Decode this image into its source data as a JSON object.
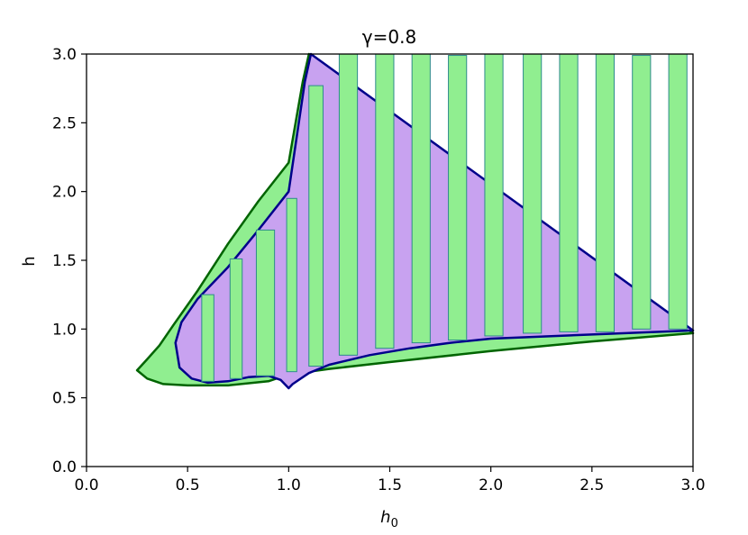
{
  "chart_data": {
    "type": "area",
    "title": "γ=0.8",
    "xlabel": "h",
    "xlabel_sub": "0",
    "ylabel": "h",
    "xlim": [
      0.0,
      3.0
    ],
    "ylim": [
      0.0,
      3.0
    ],
    "x_ticks": [
      "0.0",
      "0.5",
      "1.0",
      "1.5",
      "2.0",
      "2.5",
      "3.0"
    ],
    "y_ticks": [
      "0.0",
      "0.5",
      "1.0",
      "1.5",
      "2.0",
      "2.5",
      "3.0"
    ],
    "grid": false,
    "colors": {
      "green_fill": "#90ee90",
      "green_edge": "#006400",
      "purple_fill": "#c8a2f0",
      "purple_edge": "#00008b",
      "bar_edge": "#2e8b8b"
    },
    "green_region": {
      "upper": [
        [
          0.25,
          0.7
        ],
        [
          0.3,
          0.78
        ],
        [
          0.36,
          0.88
        ],
        [
          0.43,
          1.03
        ],
        [
          0.55,
          1.28
        ],
        [
          0.7,
          1.62
        ],
        [
          0.85,
          1.93
        ],
        [
          1.0,
          2.21
        ],
        [
          1.04,
          2.55
        ],
        [
          1.07,
          2.8
        ],
        [
          1.1,
          3.0
        ]
      ],
      "lower": [
        [
          0.25,
          0.7
        ],
        [
          0.3,
          0.64
        ],
        [
          0.38,
          0.6
        ],
        [
          0.5,
          0.59
        ],
        [
          0.7,
          0.59
        ],
        [
          0.9,
          0.62
        ],
        [
          1.0,
          0.67
        ],
        [
          1.2,
          0.71
        ],
        [
          1.5,
          0.76
        ],
        [
          2.0,
          0.84
        ],
        [
          2.5,
          0.91
        ],
        [
          3.0,
          0.97
        ]
      ]
    },
    "purple_region": {
      "upper": [
        [
          0.44,
          0.9
        ],
        [
          0.47,
          1.05
        ],
        [
          0.55,
          1.22
        ],
        [
          0.7,
          1.45
        ],
        [
          0.85,
          1.72
        ],
        [
          1.0,
          2.0
        ],
        [
          1.04,
          2.4
        ],
        [
          1.08,
          2.8
        ],
        [
          1.11,
          3.0
        ]
      ],
      "lower": [
        [
          0.44,
          0.9
        ],
        [
          0.46,
          0.72
        ],
        [
          0.52,
          0.64
        ],
        [
          0.6,
          0.61
        ],
        [
          0.7,
          0.62
        ],
        [
          0.8,
          0.65
        ],
        [
          0.9,
          0.66
        ],
        [
          0.96,
          0.63
        ],
        [
          1.0,
          0.57
        ],
        [
          1.02,
          0.6
        ],
        [
          1.1,
          0.68
        ],
        [
          1.2,
          0.74
        ],
        [
          1.4,
          0.81
        ],
        [
          1.6,
          0.86
        ],
        [
          1.8,
          0.9
        ],
        [
          2.0,
          0.93
        ],
        [
          2.5,
          0.96
        ],
        [
          3.0,
          0.99
        ]
      ]
    },
    "bars": [
      {
        "x0": 0.57,
        "x1": 0.63,
        "bottom": 0.62,
        "top": 1.25
      },
      {
        "x0": 0.71,
        "x1": 0.77,
        "bottom": 0.64,
        "top": 1.51
      },
      {
        "x0": 0.84,
        "x1": 0.93,
        "bottom": 0.66,
        "top": 1.72
      },
      {
        "x0": 0.99,
        "x1": 1.04,
        "bottom": 0.69,
        "top": 1.95
      },
      {
        "x0": 1.1,
        "x1": 1.17,
        "bottom": 0.73,
        "top": 2.77
      },
      {
        "x0": 1.25,
        "x1": 1.34,
        "bottom": 0.81,
        "top": 3.0
      },
      {
        "x0": 1.43,
        "x1": 1.52,
        "bottom": 0.86,
        "top": 3.0
      },
      {
        "x0": 1.61,
        "x1": 1.7,
        "bottom": 0.9,
        "top": 3.0
      },
      {
        "x0": 1.79,
        "x1": 1.88,
        "bottom": 0.92,
        "top": 2.99
      },
      {
        "x0": 1.97,
        "x1": 2.06,
        "bottom": 0.95,
        "top": 3.0
      },
      {
        "x0": 2.16,
        "x1": 2.25,
        "bottom": 0.97,
        "top": 3.0
      },
      {
        "x0": 2.34,
        "x1": 2.43,
        "bottom": 0.98,
        "top": 3.0
      },
      {
        "x0": 2.52,
        "x1": 2.61,
        "bottom": 0.98,
        "top": 3.0
      },
      {
        "x0": 2.7,
        "x1": 2.79,
        "bottom": 1.0,
        "top": 2.99
      },
      {
        "x0": 2.88,
        "x1": 2.97,
        "bottom": 1.0,
        "top": 3.0
      }
    ]
  }
}
